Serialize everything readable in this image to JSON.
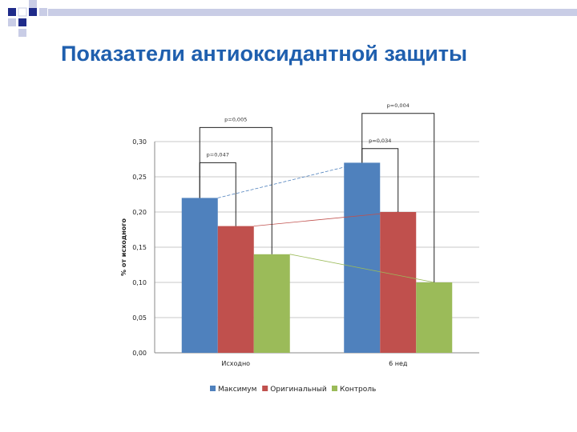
{
  "slide": {
    "title": "Показатели антиоксидантной защиты",
    "accent": "#1f5fae",
    "deco_square_color": "#1f2b8a",
    "deco_bar_color": "#c9cde6"
  },
  "chart_data": {
    "type": "bar",
    "title": "",
    "xlabel": "",
    "ylabel": "% от исходного",
    "categories": [
      "Исходно",
      "6 нед"
    ],
    "series": [
      {
        "name": "Максимум",
        "values": [
          0.22,
          0.27
        ],
        "color": "#4f81bd"
      },
      {
        "name": "Оригинальный",
        "values": [
          0.18,
          0.2
        ],
        "color": "#c0504d"
      },
      {
        "name": "Контроль",
        "values": [
          0.14,
          0.1
        ],
        "color": "#9bbb59"
      }
    ],
    "ylim": [
      0,
      0.3
    ],
    "yticks": [
      "0,00",
      "0,05",
      "0,10",
      "0,15",
      "0,20",
      "0,25",
      "0,30"
    ],
    "ytick_values": [
      0,
      0.05,
      0.1,
      0.15,
      0.2,
      0.25,
      0.3
    ],
    "grid": true,
    "legend_position": "bottom",
    "annotations": [
      {
        "text": "p=0,047",
        "group": 0,
        "from_series": 0,
        "to_series": 1,
        "level": 0.27
      },
      {
        "text": "p=0,005",
        "group": 0,
        "from_series": 0,
        "to_series": 2,
        "level": 0.32
      },
      {
        "text": "p=0,034",
        "group": 1,
        "from_series": 0,
        "to_series": 1,
        "level": 0.29
      },
      {
        "text": "p=0,004",
        "group": 1,
        "from_series": 0,
        "to_series": 2,
        "level": 0.34
      }
    ]
  }
}
